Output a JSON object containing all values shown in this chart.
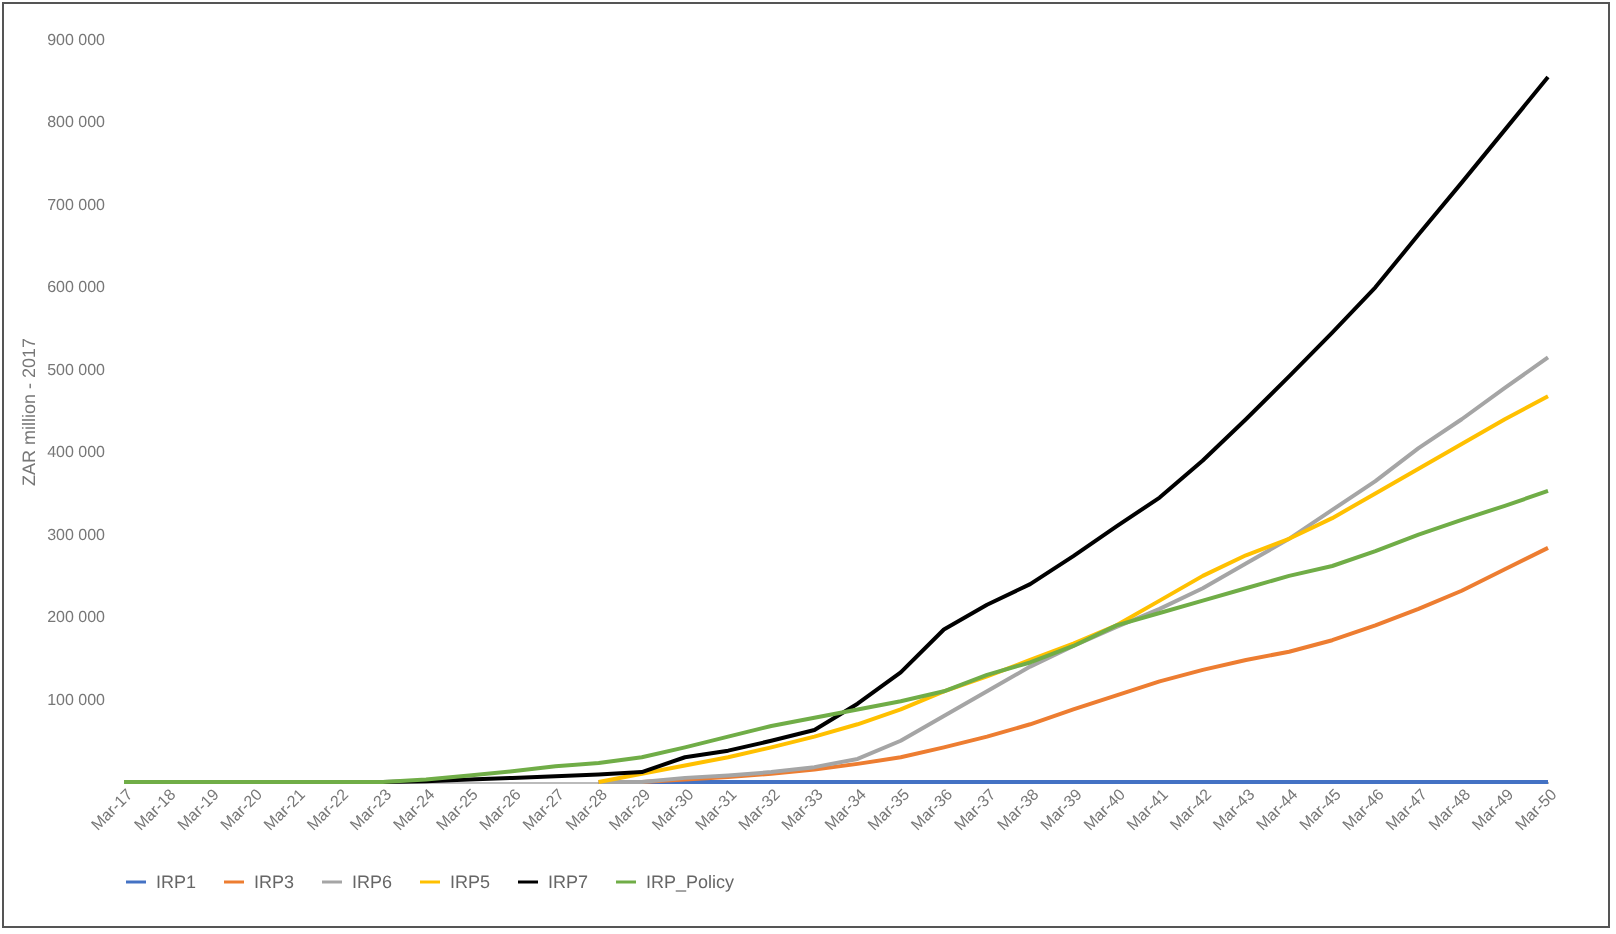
{
  "chart_data": {
    "type": "line",
    "ylabel": "ZAR million - 2017",
    "categories": [
      "Mar-17",
      "Mar-18",
      "Mar-19",
      "Mar-20",
      "Mar-21",
      "Mar-22",
      "Mar-23",
      "Mar-24",
      "Mar-25",
      "Mar-26",
      "Mar-27",
      "Mar-28",
      "Mar-29",
      "Mar-30",
      "Mar-31",
      "Mar-32",
      "Mar-33",
      "Mar-34",
      "Mar-35",
      "Mar-36",
      "Mar-37",
      "Mar-38",
      "Mar-39",
      "Mar-40",
      "Mar-41",
      "Mar-42",
      "Mar-43",
      "Mar-44",
      "Mar-45",
      "Mar-46",
      "Mar-47",
      "Mar-48",
      "Mar-49",
      "Mar-50"
    ],
    "series": [
      {
        "name": "IRP1",
        "color": "#4472c4",
        "values": [
          null,
          null,
          null,
          null,
          null,
          null,
          null,
          null,
          null,
          null,
          null,
          0,
          0,
          0,
          0,
          0,
          0,
          0,
          0,
          0,
          0,
          0,
          0,
          0,
          0,
          0,
          0,
          0,
          0,
          0,
          0,
          0,
          0,
          0
        ]
      },
      {
        "name": "IRP3",
        "color": "#ed7d31",
        "values": [
          null,
          null,
          null,
          null,
          null,
          null,
          null,
          null,
          null,
          null,
          null,
          0,
          0,
          3000,
          6000,
          10000,
          15000,
          22000,
          30000,
          42000,
          55000,
          70000,
          88000,
          105000,
          122000,
          136000,
          148000,
          158000,
          172000,
          190000,
          210000,
          232000,
          258000,
          284000
        ]
      },
      {
        "name": "IRP6",
        "color": "#a5a5a5",
        "values": [
          null,
          null,
          null,
          null,
          null,
          null,
          null,
          null,
          null,
          null,
          null,
          0,
          0,
          5000,
          8000,
          12000,
          18000,
          28000,
          50000,
          80000,
          110000,
          140000,
          165000,
          188000,
          210000,
          235000,
          265000,
          295000,
          330000,
          365000,
          405000,
          440000,
          478000,
          515000
        ]
      },
      {
        "name": "IRP5",
        "color": "#ffc000",
        "values": [
          null,
          null,
          null,
          null,
          null,
          null,
          null,
          null,
          null,
          null,
          null,
          0,
          10000,
          20000,
          30000,
          42000,
          55000,
          70000,
          88000,
          110000,
          128000,
          148000,
          168000,
          190000,
          220000,
          250000,
          275000,
          295000,
          320000,
          350000,
          380000,
          410000,
          440000,
          468000
        ]
      },
      {
        "name": "IRP7",
        "color": "#000000",
        "values": [
          null,
          null,
          null,
          null,
          null,
          0,
          0,
          1000,
          3000,
          5000,
          7000,
          9000,
          12000,
          30000,
          38000,
          50000,
          63000,
          95000,
          133000,
          185000,
          215000,
          240000,
          274000,
          310000,
          345000,
          390000,
          440000,
          492000,
          545000,
          600000,
          664000,
          727000,
          791000,
          855000
        ]
      },
      {
        "name": "IRP_Policy",
        "color": "#70ad47",
        "values": [
          0,
          0,
          0,
          0,
          0,
          0,
          0,
          3000,
          8000,
          13000,
          19000,
          23000,
          30000,
          42000,
          55000,
          68000,
          78000,
          88000,
          98000,
          110000,
          130000,
          145000,
          165000,
          190000,
          205000,
          220000,
          235000,
          250000,
          262000,
          280000,
          300000,
          318000,
          335000,
          353000
        ]
      }
    ],
    "ylim": [
      0,
      900000
    ],
    "yticks": [
      {
        "value": 100000,
        "label": "100 000"
      },
      {
        "value": 200000,
        "label": "200 000"
      },
      {
        "value": 300000,
        "label": "300 000"
      },
      {
        "value": 400000,
        "label": "400 000"
      },
      {
        "value": 500000,
        "label": "500 000"
      },
      {
        "value": 600000,
        "label": "600 000"
      },
      {
        "value": 700000,
        "label": "700 000"
      },
      {
        "value": 800000,
        "label": "800 000"
      },
      {
        "value": 900000,
        "label": "900 000"
      }
    ],
    "legend": "bottom"
  }
}
